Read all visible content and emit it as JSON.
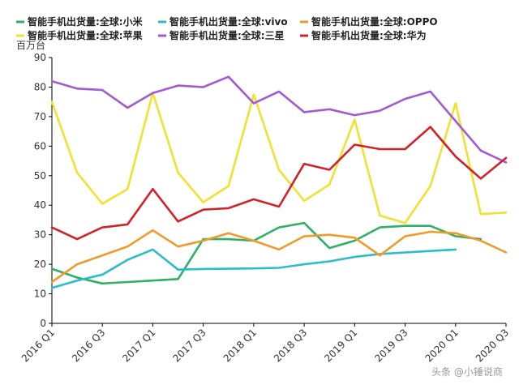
{
  "chart_data": {
    "type": "line",
    "unit_label": "百万台",
    "ylim": [
      0,
      90
    ],
    "yticks": [
      0,
      10,
      20,
      30,
      40,
      50,
      60,
      70,
      80,
      90
    ],
    "grid": false,
    "legend_position": "top",
    "categories": [
      "2016 Q1",
      "2016 Q2",
      "2016 Q3",
      "2016 Q4",
      "2017 Q1",
      "2017 Q2",
      "2017 Q3",
      "2017 Q4",
      "2018 Q1",
      "2018 Q2",
      "2018 Q3",
      "2018 Q4",
      "2019 Q1",
      "2019 Q2",
      "2019 Q3",
      "2019 Q4",
      "2020 Q1",
      "2020 Q2",
      "2020 Q3"
    ],
    "x_tick_labels": [
      "2016 Q1",
      "2016 Q3",
      "2017 Q1",
      "2017 Q3",
      "2018 Q1",
      "2018 Q3",
      "2019 Q1",
      "2019 Q3",
      "2020 Q1",
      "2020 Q3"
    ],
    "series": [
      {
        "name": "智能手机出货量:全球:小米",
        "color": "#2fb064",
        "values": [
          18.5,
          15.5,
          13.5,
          14.0,
          14.5,
          15.0,
          28.5,
          28.5,
          28.0,
          32.5,
          34.0,
          25.5,
          28.0,
          32.5,
          33.0,
          33.0,
          29.5,
          28.5,
          null
        ]
      },
      {
        "name": "智能手机出货量:全球:vivo",
        "color": "#2bbdc8",
        "values": [
          12.0,
          14.5,
          16.5,
          21.5,
          25.0,
          18.2,
          18.4,
          18.5,
          18.6,
          18.8,
          20.0,
          21.0,
          22.5,
          23.5,
          24.0,
          24.5,
          25.0,
          null,
          null
        ]
      },
      {
        "name": "智能手机出货量:全球:OPPO",
        "color": "#f29a28",
        "values": [
          14.0,
          20.0,
          23.0,
          26.0,
          31.5,
          26.0,
          28.0,
          30.5,
          28.0,
          25.0,
          29.5,
          30.0,
          29.0,
          23.0,
          29.5,
          31.0,
          30.5,
          28.0,
          24.0
        ]
      },
      {
        "name": "智能手机出货量:全球:苹果",
        "color": "#f1e231",
        "values": [
          75.0,
          51.0,
          40.5,
          45.5,
          78.0,
          51.0,
          41.0,
          46.5,
          77.5,
          52.0,
          41.5,
          47.0,
          69.0,
          36.5,
          34.0,
          46.5,
          74.5,
          37.0,
          37.5
        ]
      },
      {
        "name": "智能手机出货量:全球:三星",
        "color": "#a05ad6",
        "values": [
          82.0,
          79.5,
          79.0,
          73.0,
          78.0,
          80.5,
          80.0,
          83.5,
          74.5,
          78.5,
          71.5,
          72.5,
          70.5,
          72.0,
          76.0,
          78.5,
          68.5,
          58.5,
          54.5
        ]
      },
      {
        "name": "智能手机出货量:全球:华为",
        "color": "#d32128",
        "values": [
          32.5,
          28.5,
          32.5,
          33.5,
          45.5,
          34.5,
          38.5,
          39.0,
          42.0,
          39.5,
          54.0,
          52.0,
          60.5,
          59.0,
          59.0,
          66.5,
          56.5,
          49.0,
          56.0
        ]
      }
    ]
  },
  "watermark_text": "头条 @小锤说商"
}
